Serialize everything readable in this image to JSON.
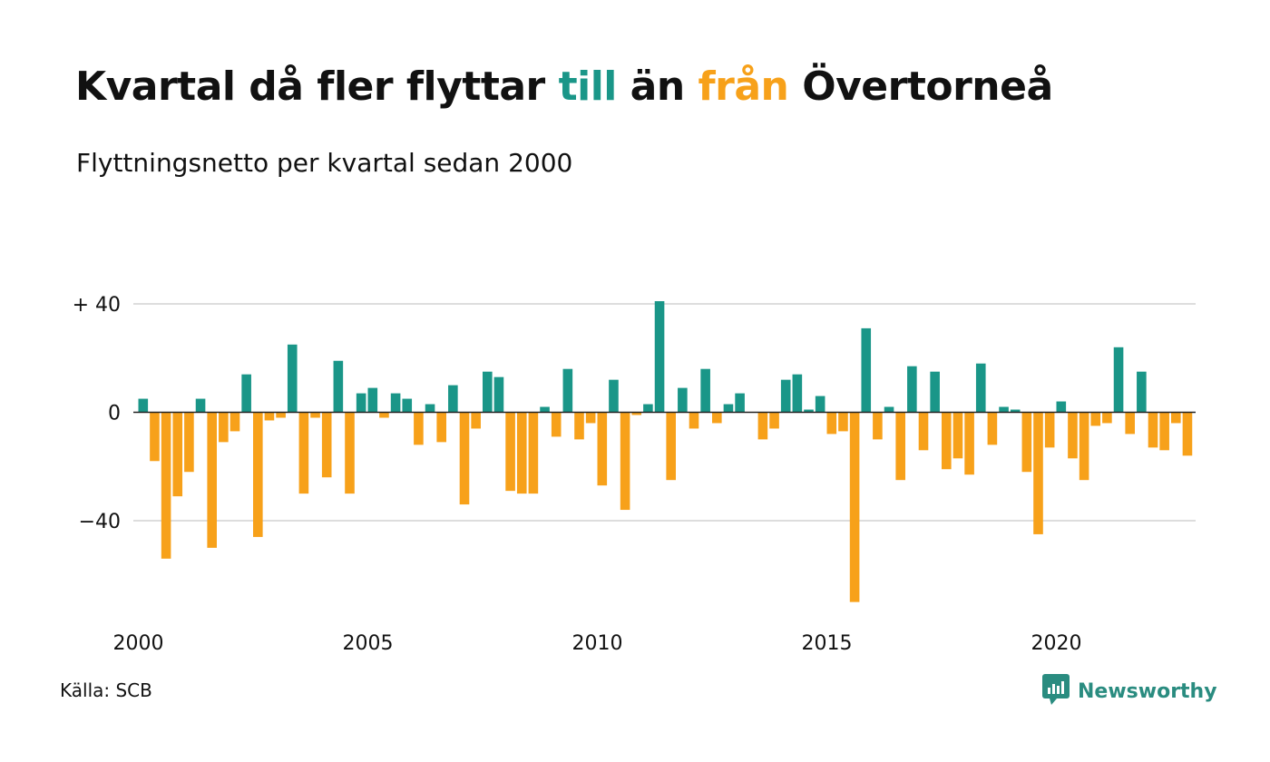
{
  "title": {
    "part1": "Kvartal då fler flyttar ",
    "pos_word": "till",
    "part2": " än ",
    "neg_word": "från",
    "part3": " Övertorneå"
  },
  "subtitle": "Flyttningsnetto per kvartal sedan 2000",
  "source": "Källa: SCB",
  "brand": {
    "name": "Newsworthy",
    "icon": "newsworthy-logo-icon"
  },
  "colors": {
    "positive": "#1a9688",
    "negative": "#f7a11a",
    "grid": "#dddddd",
    "text": "#111111"
  },
  "chart_data": {
    "type": "bar",
    "x_start": "2000 Q1",
    "xtick_labels": [
      "2000",
      "2005",
      "2010",
      "2015",
      "2020"
    ],
    "ytick_labels": [
      "+ 40",
      "0",
      "−40"
    ],
    "yticks": [
      40,
      0,
      -40
    ],
    "ylim": [
      -73,
      46
    ],
    "grid": "horizontal",
    "values": [
      5,
      -18,
      -54,
      -31,
      -22,
      5,
      -50,
      -11,
      -7,
      14,
      -46,
      -3,
      -2,
      25,
      -30,
      -2,
      -24,
      19,
      -30,
      7,
      9,
      -2,
      7,
      5,
      -12,
      3,
      -11,
      10,
      -34,
      -6,
      15,
      13,
      -29,
      -30,
      -30,
      2,
      -9,
      16,
      -10,
      -4,
      -27,
      12,
      -36,
      -1,
      3,
      41,
      -25,
      9,
      -6,
      16,
      -4,
      3,
      7,
      0,
      -10,
      -6,
      12,
      14,
      1,
      6,
      -8,
      -7,
      -70,
      31,
      -10,
      2,
      -25,
      17,
      -14,
      15,
      -21,
      -17,
      -23,
      18,
      -12,
      2,
      1,
      -22,
      -45,
      -13,
      4,
      -17,
      -25,
      -5,
      -4,
      24,
      -8,
      15,
      -13,
      -14,
      -4,
      -16
    ]
  }
}
